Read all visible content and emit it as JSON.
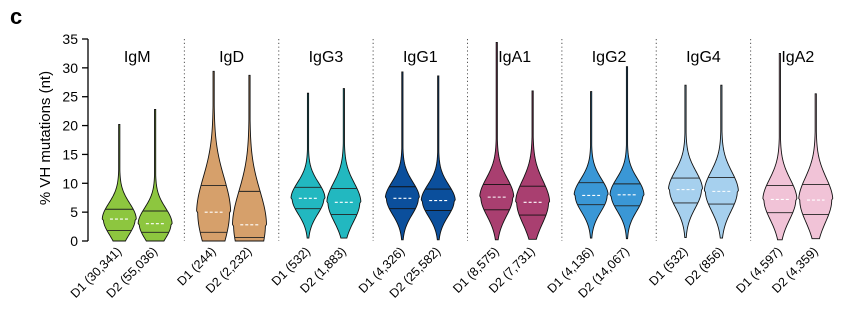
{
  "panel_label": "c",
  "chart_data": {
    "type": "violin",
    "ylabel": "% VH mutations (nt)",
    "ylim": [
      0,
      35
    ],
    "yticks": [
      0,
      5,
      10,
      15,
      20,
      25,
      30,
      35
    ],
    "grid": false,
    "group_separators": "dotted vertical lines",
    "groups": [
      {
        "name": "IgM",
        "color": "#8DC63F",
        "violins": [
          {
            "label": "D1 (30,341)",
            "min": 0,
            "q1": 1.8,
            "median": 3.8,
            "q3": 5.5,
            "max": 20.2
          },
          {
            "label": "D2 (55,036)",
            "min": 0,
            "q1": 1.5,
            "median": 3.0,
            "q3": 5.2,
            "max": 22.8
          }
        ]
      },
      {
        "name": "IgD",
        "color": "#D6A06B",
        "violins": [
          {
            "label": "D1 (244)",
            "min": 0,
            "q1": 1.5,
            "median": 5.0,
            "q3": 9.6,
            "max": 29.4
          },
          {
            "label": "D2 (2,232)",
            "min": 0,
            "q1": 0.6,
            "median": 2.8,
            "q3": 8.6,
            "max": 28.7
          }
        ]
      },
      {
        "name": "IgG3",
        "color": "#22B8C0",
        "violins": [
          {
            "label": "D1 (532)",
            "min": 0.5,
            "q1": 5.6,
            "median": 7.4,
            "q3": 9.3,
            "max": 25.6
          },
          {
            "label": "D2 (1,883)",
            "min": 0.5,
            "q1": 4.6,
            "median": 6.7,
            "q3": 9.1,
            "max": 26.4
          }
        ]
      },
      {
        "name": "IgG1",
        "color": "#0B4F9C",
        "violins": [
          {
            "label": "D1 (4,326)",
            "min": 0.2,
            "q1": 5.6,
            "median": 7.4,
            "q3": 9.4,
            "max": 29.3
          },
          {
            "label": "D2 (25,582)",
            "min": 0.2,
            "q1": 5.3,
            "median": 7.0,
            "q3": 9.0,
            "max": 28.6
          }
        ]
      },
      {
        "name": "IgA1",
        "color": "#A93F70",
        "violins": [
          {
            "label": "D1 (8,575)",
            "min": 0.2,
            "q1": 5.4,
            "median": 7.6,
            "q3": 9.8,
            "max": 34.4
          },
          {
            "label": "D2 (7,731)",
            "min": 0.3,
            "q1": 4.5,
            "median": 6.7,
            "q3": 9.5,
            "max": 26.0
          }
        ]
      },
      {
        "name": "IgG2",
        "color": "#3A97D6",
        "violins": [
          {
            "label": "D1 (4,136)",
            "min": 0.5,
            "q1": 6.3,
            "median": 7.9,
            "q3": 10.1,
            "max": 25.9
          },
          {
            "label": "D2 (14,067)",
            "min": 0.4,
            "q1": 6.1,
            "median": 8.0,
            "q3": 9.9,
            "max": 30.2
          }
        ]
      },
      {
        "name": "IgG4",
        "color": "#A6D0EE",
        "violins": [
          {
            "label": "D1 (532)",
            "min": 0.6,
            "q1": 6.6,
            "median": 8.9,
            "q3": 10.9,
            "max": 27.0
          },
          {
            "label": "D2 (856)",
            "min": 0.5,
            "q1": 6.4,
            "median": 8.6,
            "q3": 11.0,
            "max": 27.0
          }
        ]
      },
      {
        "name": "IgA2",
        "color": "#F1C3D7",
        "violins": [
          {
            "label": "D1 (4,597)",
            "min": 0.2,
            "q1": 4.9,
            "median": 7.2,
            "q3": 9.6,
            "max": 32.5
          },
          {
            "label": "D2 (4,359)",
            "min": 0.4,
            "q1": 4.6,
            "median": 7.1,
            "q3": 9.8,
            "max": 25.5
          }
        ]
      }
    ]
  }
}
